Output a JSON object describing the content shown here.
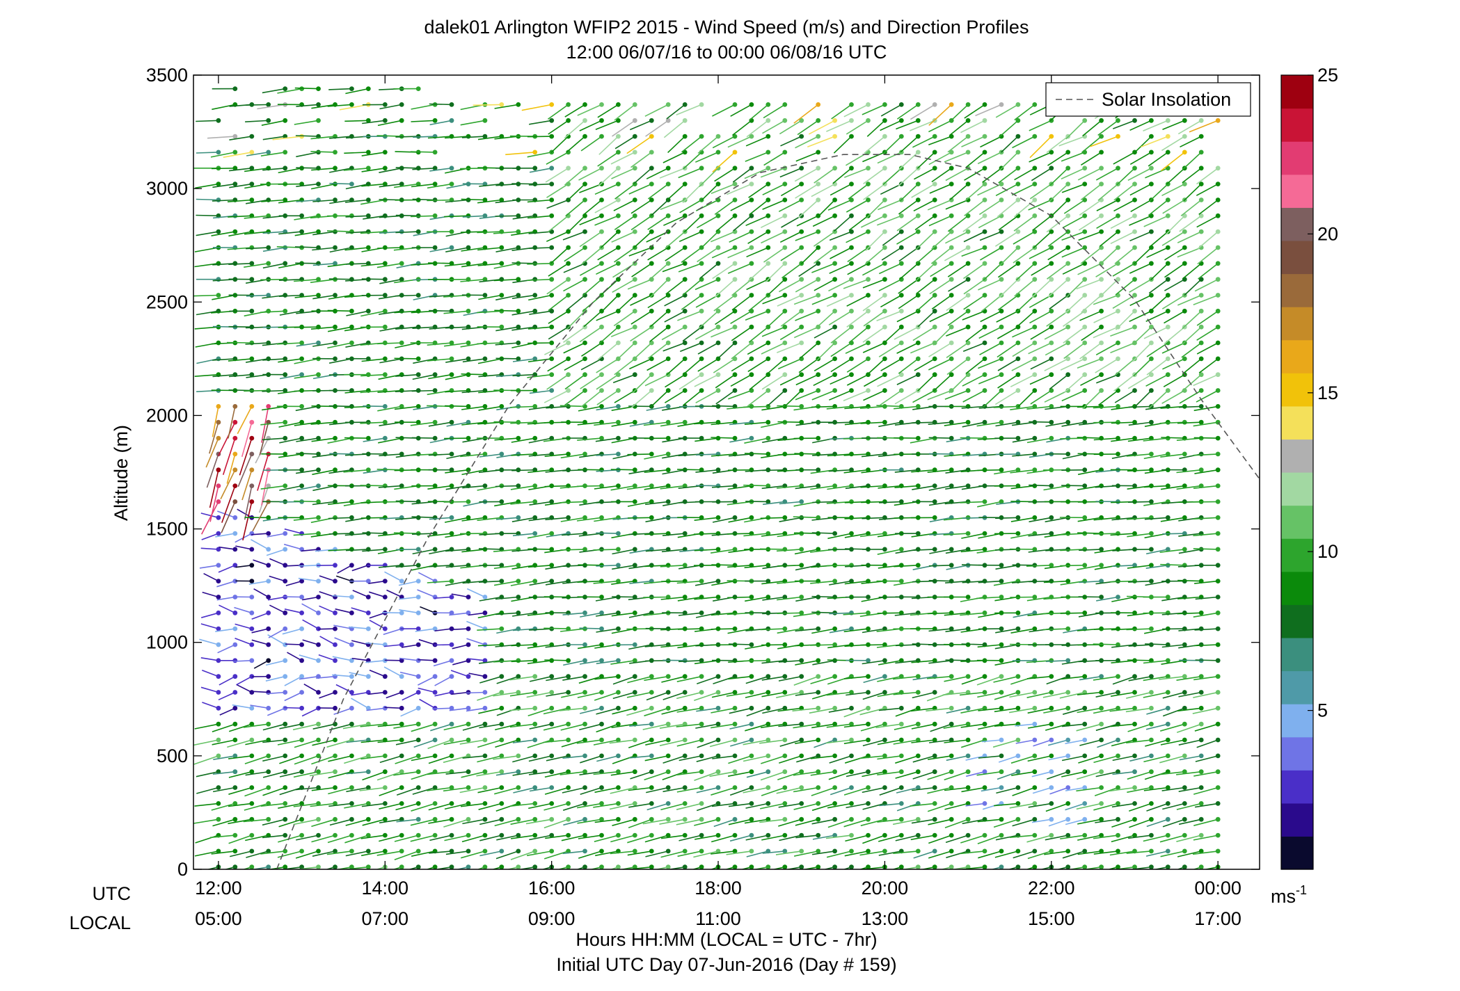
{
  "title_line1": "dalek01 Arlington WFIP2 2015 - Wind Speed (m/s) and Direction Profiles",
  "title_line2": "12:00 06/07/16 to 00:00 06/08/16  UTC",
  "xlabel_line1": "Hours HH:MM  (LOCAL = UTC - 7hr)",
  "xlabel_line2": "Initial UTC Day 07-Jun-2016 (Day # 159)",
  "row_label_utc": "UTC",
  "row_label_local": "LOCAL",
  "ylabel": "Altitude (m)",
  "legend_label": "Solar Insolation",
  "colorbar_unit": "ms",
  "colorbar_unit_exp": "-1",
  "chart_data": {
    "type": "wind-barb profile (scatter with direction sticks)",
    "x_utc_ticks": [
      "12:00",
      "14:00",
      "16:00",
      "18:00",
      "20:00",
      "22:00",
      "00:00"
    ],
    "x_local_ticks": [
      "05:00",
      "07:00",
      "09:00",
      "11:00",
      "13:00",
      "15:00",
      "17:00"
    ],
    "x_tick_hours_utc": [
      12,
      14,
      16,
      18,
      20,
      22,
      24
    ],
    "xlim_hours_utc": [
      11.7,
      24.5
    ],
    "y_ticks": [
      0,
      500,
      1000,
      1500,
      2000,
      2500,
      3000,
      3500
    ],
    "ylim": [
      0,
      3500
    ],
    "colorbar_ticks": [
      5,
      10,
      15,
      20,
      25
    ],
    "colorbar_range": [
      0,
      25
    ],
    "grid": false,
    "legend_position": "top-right",
    "series": [
      {
        "name": "Solar Insolation",
        "style": "dashed",
        "color": "#555555",
        "x_hours_utc": [
          12.7,
          13.5,
          14.5,
          15.5,
          16.5,
          17.5,
          18.5,
          19.5,
          20.3,
          21.0,
          22.0,
          23.0,
          23.8,
          24.5
        ],
        "y_altitude_m": [
          0,
          750,
          1450,
          2050,
          2500,
          2850,
          3070,
          3150,
          3150,
          3090,
          2880,
          2510,
          2070,
          1720
        ]
      }
    ],
    "wind_field_summary": {
      "sample_interval_minutes": 12,
      "vertical_spacing_m": 70,
      "low_speed_region": "05:00-07:30 local, 700-1600 m, 1-5 m/s (purple/blue)",
      "jet_region": "12:00 UTC, 1600-2000 m, up to ~25 m/s (red/yellow)",
      "general_speed": "6-11 m/s (green) elsewhere"
    }
  },
  "colors": {
    "colormap": [
      "#0a0a2e",
      "#2a0a8c",
      "#4a2fc8",
      "#6f74e6",
      "#7fb0ee",
      "#4f9aa8",
      "#3b8f7e",
      "#0f6e1e",
      "#0b8a0b",
      "#2da52d",
      "#66c266",
      "#a2d8a2",
      "#b0b0b0",
      "#f4e05a",
      "#f1c20a",
      "#e9a81a",
      "#c58b28",
      "#9a6a3a",
      "#7a4f3e",
      "#7d5f5f",
      "#f56a96",
      "#e23c72",
      "#c91436",
      "#9e0010"
    ]
  }
}
